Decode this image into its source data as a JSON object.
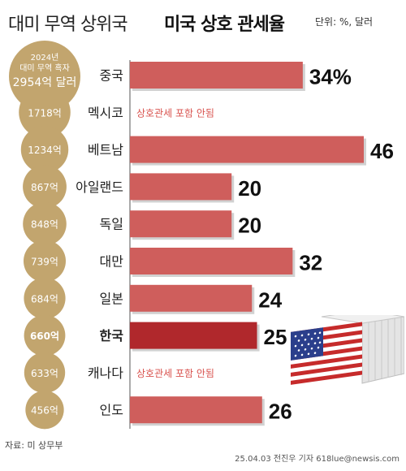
{
  "header": {
    "title_light": "대미 무역 상위국",
    "title_bold": "미국 상호 관세율",
    "unit": "단위: %, 달러"
  },
  "footer": {
    "source": "자료: 미 상무부",
    "credit": "25.04.03 전진우 기자 618lue@newsis.com"
  },
  "colors": {
    "bar": "#cf5e5c",
    "bar_highlight": "#b0282c",
    "circle": "#c2a56e",
    "circle_dark": "#a8873e",
    "excluded_text": "#d9534f"
  },
  "chart_data": {
    "type": "bar",
    "orientation": "horizontal",
    "title": "미국 상호 관세율",
    "circle_header": [
      "2024년",
      "대미 무역 흑자"
    ],
    "categories": [
      "중국",
      "멕시코",
      "베트남",
      "아일랜드",
      "독일",
      "대만",
      "일본",
      "한국",
      "캐나다",
      "인도"
    ],
    "surplus_labels": [
      "2954억 달러",
      "1718억",
      "1234억",
      "867억",
      "848억",
      "739억",
      "684억",
      "660억",
      "633억",
      "456억"
    ],
    "surplus_values": [
      2954,
      1718,
      1234,
      867,
      848,
      739,
      684,
      660,
      633,
      456
    ],
    "values": [
      34,
      null,
      46,
      20,
      20,
      32,
      24,
      25,
      null,
      26
    ],
    "value_labels": [
      "34%",
      "",
      "46",
      "20",
      "20",
      "32",
      "24",
      "25",
      "",
      "26"
    ],
    "excluded_label": "상호관세 포함 안됨",
    "highlight_index": 7,
    "xlim": [
      0,
      48
    ]
  }
}
